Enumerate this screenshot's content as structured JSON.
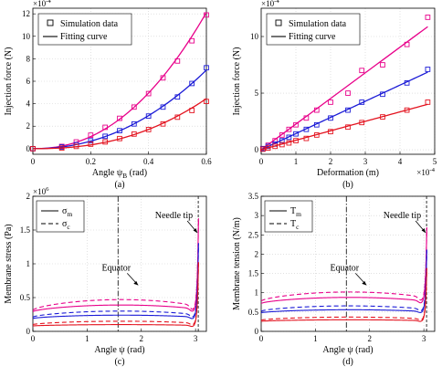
{
  "colors": {
    "series": [
      "#e8008a",
      "#1a1ad6",
      "#e3121e"
    ],
    "black": "#000000"
  },
  "chart_data": [
    {
      "id": "a",
      "type": "scatter",
      "caption": "(a)",
      "xlabel": "Angle ψ_B (rad)",
      "ylabel": "Injection force (N)",
      "exponent": "×10^-4",
      "xlim": [
        0,
        0.6
      ],
      "ylim": [
        -0.5,
        12.5
      ],
      "xticks": [
        0,
        0.2,
        0.4,
        0.6
      ],
      "xticklabels": [
        "0",
        "0.2",
        "0.4",
        "0.6"
      ],
      "yticks": [
        0,
        2,
        4,
        6,
        8,
        10,
        12
      ],
      "yticklabels": [
        "0",
        "2",
        "4",
        "6",
        "8",
        "10",
        "12"
      ],
      "legend": {
        "items": [
          "Simulation data",
          "Fitting curve"
        ],
        "position": "top-left"
      },
      "fit": "power",
      "series": [
        {
          "x": [
            0,
            0.1,
            0.15,
            0.2,
            0.25,
            0.3,
            0.35,
            0.4,
            0.45,
            0.5,
            0.55,
            0.6
          ],
          "y": [
            0,
            0.2,
            0.6,
            1.2,
            1.9,
            2.7,
            3.7,
            4.9,
            6.3,
            7.8,
            9.6,
            11.9
          ]
        },
        {
          "x": [
            0,
            0.1,
            0.15,
            0.2,
            0.25,
            0.3,
            0.35,
            0.4,
            0.45,
            0.5,
            0.55,
            0.6
          ],
          "y": [
            0,
            0.15,
            0.35,
            0.7,
            1.1,
            1.6,
            2.2,
            2.9,
            3.7,
            4.6,
            5.8,
            7.2
          ]
        },
        {
          "x": [
            0,
            0.1,
            0.15,
            0.2,
            0.25,
            0.3,
            0.35,
            0.4,
            0.45,
            0.5,
            0.55,
            0.6
          ],
          "y": [
            0,
            0.05,
            0.2,
            0.4,
            0.6,
            0.9,
            1.3,
            1.7,
            2.2,
            2.8,
            3.4,
            4.2
          ]
        }
      ]
    },
    {
      "id": "b",
      "type": "scatter",
      "caption": "(b)",
      "xlabel": "Deformation (m)",
      "ylabel": "Injection force (N)",
      "exponent": "×10^-4",
      "xexponent": "×10^-4",
      "xlim": [
        0,
        5
      ],
      "ylim": [
        -0.4,
        12.5
      ],
      "xticks": [
        0,
        1,
        2,
        3,
        4,
        5
      ],
      "xticklabels": [
        "0",
        "1",
        "2",
        "3",
        "4",
        "5"
      ],
      "yticks": [
        0,
        5,
        10
      ],
      "yticklabels": [
        "0",
        "5",
        "10"
      ],
      "legend": {
        "items": [
          "Simulation data",
          "Fitting curve"
        ],
        "position": "top-left"
      },
      "fit": "linear",
      "series": [
        {
          "x": [
            0.05,
            0.2,
            0.4,
            0.6,
            0.8,
            1.0,
            1.3,
            1.6,
            2.0,
            2.5,
            2.9,
            3.5,
            4.2,
            4.8
          ],
          "y": [
            0.1,
            0.4,
            0.8,
            1.3,
            1.8,
            2.2,
            2.8,
            3.5,
            4.2,
            5.0,
            7.0,
            7.5,
            9.3,
            11.7
          ]
        },
        {
          "x": [
            0.05,
            0.2,
            0.4,
            0.6,
            0.8,
            1.0,
            1.3,
            1.6,
            2.0,
            2.5,
            2.9,
            3.5,
            4.2,
            4.8
          ],
          "y": [
            0.1,
            0.3,
            0.5,
            0.8,
            1.1,
            1.4,
            1.8,
            2.2,
            2.8,
            3.5,
            4.2,
            4.9,
            5.9,
            7.1
          ]
        },
        {
          "x": [
            0.05,
            0.2,
            0.4,
            0.6,
            0.8,
            1.0,
            1.3,
            1.6,
            2.0,
            2.5,
            2.9,
            3.5,
            4.2,
            4.8
          ],
          "y": [
            0.05,
            0.15,
            0.3,
            0.45,
            0.6,
            0.8,
            1.0,
            1.3,
            1.6,
            2.0,
            2.4,
            2.9,
            3.5,
            4.2
          ]
        }
      ]
    },
    {
      "id": "c",
      "type": "line",
      "caption": "(c)",
      "xlabel": "Angle ψ (rad)",
      "ylabel": "Membrane stress (Pa)",
      "exponent": "×10^6",
      "xlim": [
        0,
        3.2
      ],
      "ylim": [
        0,
        2.0
      ],
      "xticks": [
        0,
        1,
        2,
        3
      ],
      "xticklabels": [
        "0",
        "1",
        "2",
        "3"
      ],
      "yticks": [
        0,
        0.5,
        1,
        1.5,
        2
      ],
      "yticklabels": [
        "0",
        "0.5",
        "1",
        "1.5",
        "2"
      ],
      "legend": {
        "items": [
          "σ_m",
          "σ_c"
        ],
        "position": "top-left"
      },
      "vline": 1.5708,
      "needle_x": 3.05,
      "annotations": {
        "equator": "Equator",
        "needle": "Needle tip"
      },
      "series": [
        {
          "solid_base": 0.29,
          "solid_mid": 0.39,
          "dashed_base": 0.31,
          "dashed_mid": 0.47,
          "tip": 1.95
        },
        {
          "solid_base": 0.19,
          "solid_mid": 0.24,
          "dashed_base": 0.21,
          "dashed_mid": 0.3,
          "tip": 1.55
        },
        {
          "solid_base": 0.08,
          "solid_mid": 0.1,
          "dashed_base": 0.1,
          "dashed_mid": 0.15,
          "tip": 1.25
        }
      ]
    },
    {
      "id": "d",
      "type": "line",
      "caption": "(d)",
      "xlabel": "Angle ψ (rad)",
      "ylabel": "Membrane tension (N/m)",
      "xlim": [
        0,
        3.2
      ],
      "ylim": [
        0,
        3.5
      ],
      "xticks": [
        0,
        1,
        2,
        3
      ],
      "xticklabels": [
        "0",
        "1",
        "2",
        "3"
      ],
      "yticks": [
        0,
        0.5,
        1,
        1.5,
        2,
        2.5,
        3,
        3.5
      ],
      "yticklabels": [
        "0",
        "0.5",
        "1",
        "1.5",
        "2",
        "2.5",
        "3",
        "3.5"
      ],
      "legend": {
        "items": [
          "T_m",
          "T_c"
        ],
        "position": "top-left"
      },
      "vline": 1.5708,
      "needle_x": 3.05,
      "annotations": {
        "equator": "Equator",
        "needle": "Needle tip"
      },
      "series": [
        {
          "solid_base": 0.72,
          "solid_mid": 0.88,
          "dashed_base": 0.78,
          "dashed_mid": 1.02,
          "tip": 3.05
        },
        {
          "solid_base": 0.48,
          "solid_mid": 0.56,
          "dashed_base": 0.52,
          "dashed_mid": 0.66,
          "tip": 2.45
        },
        {
          "solid_base": 0.26,
          "solid_mid": 0.3,
          "dashed_base": 0.29,
          "dashed_mid": 0.37,
          "tip": 1.95
        }
      ]
    }
  ]
}
